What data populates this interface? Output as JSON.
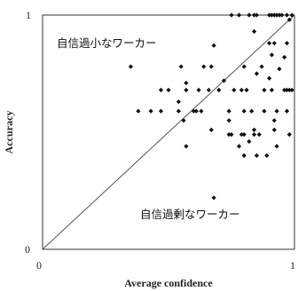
{
  "chart_data": {
    "type": "scatter",
    "xlabel": "Average confidence",
    "ylabel": "Accuracy",
    "xlim": [
      0,
      1
    ],
    "ylim": [
      0,
      1
    ],
    "x_tick_labels": [
      "0",
      "1"
    ],
    "y_tick_labels": [
      "0",
      "1"
    ],
    "grid": false,
    "reference_line": "y = x",
    "annotations": [
      {
        "text": "自信過小なワーカー"
      },
      {
        "text": "自信過剰なワーカー"
      }
    ],
    "colors": {
      "marker": "#111111",
      "frame": "#333333",
      "diagonal": "#555555"
    },
    "points": [
      [
        0.75,
        1.0
      ],
      [
        0.78,
        1.0
      ],
      [
        0.82,
        1.0
      ],
      [
        0.84,
        1.0
      ],
      [
        0.85,
        1.0
      ],
      [
        0.9,
        1.0
      ],
      [
        0.91,
        1.0
      ],
      [
        0.92,
        1.0
      ],
      [
        0.93,
        1.0
      ],
      [
        0.94,
        1.0
      ],
      [
        0.95,
        1.0
      ],
      [
        0.97,
        1.0
      ],
      [
        0.99,
        1.0
      ],
      [
        0.98,
        0.98
      ],
      [
        0.84,
        0.93
      ],
      [
        0.9,
        0.88
      ],
      [
        0.92,
        0.88
      ],
      [
        0.97,
        0.88
      ],
      [
        0.68,
        0.87
      ],
      [
        0.91,
        0.83
      ],
      [
        0.96,
        0.82
      ],
      [
        0.35,
        0.78
      ],
      [
        0.55,
        0.78
      ],
      [
        0.64,
        0.78
      ],
      [
        0.67,
        0.78
      ],
      [
        0.8,
        0.78
      ],
      [
        0.87,
        0.78
      ],
      [
        0.94,
        0.77
      ],
      [
        0.85,
        0.75
      ],
      [
        0.57,
        0.71
      ],
      [
        0.72,
        0.72
      ],
      [
        0.9,
        0.73
      ],
      [
        0.47,
        0.68
      ],
      [
        0.5,
        0.68
      ],
      [
        0.57,
        0.68
      ],
      [
        0.62,
        0.68
      ],
      [
        0.66,
        0.68
      ],
      [
        0.7,
        0.68
      ],
      [
        0.76,
        0.68
      ],
      [
        0.79,
        0.68
      ],
      [
        0.81,
        0.68
      ],
      [
        0.88,
        0.68
      ],
      [
        0.91,
        0.68
      ],
      [
        0.96,
        0.68
      ],
      [
        0.97,
        0.68
      ],
      [
        0.98,
        0.68
      ],
      [
        0.99,
        0.68
      ],
      [
        0.54,
        0.63
      ],
      [
        0.38,
        0.59
      ],
      [
        0.43,
        0.59
      ],
      [
        0.47,
        0.59
      ],
      [
        0.54,
        0.59
      ],
      [
        0.6,
        0.59
      ],
      [
        0.61,
        0.59
      ],
      [
        0.63,
        0.59
      ],
      [
        0.74,
        0.59
      ],
      [
        0.8,
        0.59
      ],
      [
        0.83,
        0.59
      ],
      [
        0.88,
        0.59
      ],
      [
        0.93,
        0.59
      ],
      [
        0.97,
        0.59
      ],
      [
        0.56,
        0.55
      ],
      [
        0.74,
        0.55
      ],
      [
        0.92,
        0.55
      ],
      [
        0.67,
        0.51
      ],
      [
        0.84,
        0.51
      ],
      [
        0.92,
        0.51
      ],
      [
        0.74,
        0.49
      ],
      [
        0.75,
        0.49
      ],
      [
        0.79,
        0.49
      ],
      [
        0.8,
        0.49
      ],
      [
        0.84,
        0.49
      ],
      [
        0.86,
        0.49
      ],
      [
        0.98,
        0.49
      ],
      [
        0.82,
        0.46
      ],
      [
        0.78,
        0.44
      ],
      [
        0.93,
        0.44
      ],
      [
        0.57,
        0.44
      ],
      [
        0.8,
        0.4
      ],
      [
        0.85,
        0.4
      ],
      [
        0.89,
        0.4
      ],
      [
        0.68,
        0.22
      ]
    ]
  }
}
